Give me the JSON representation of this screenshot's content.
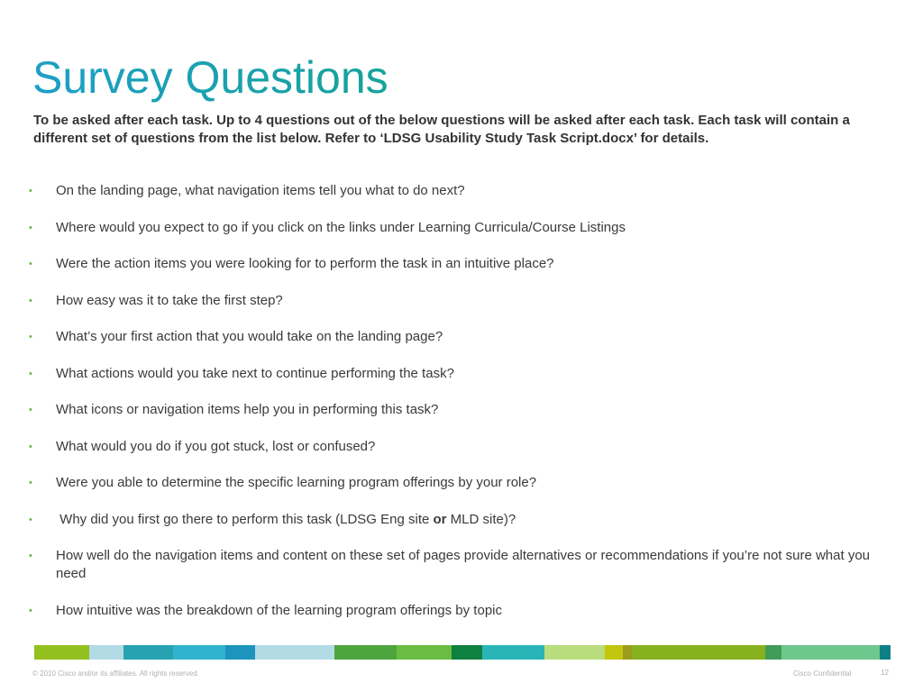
{
  "slide": {
    "title": "Survey Questions",
    "intro": "To be asked after each task.  Up to 4 questions out of the below questions will be asked after each task.  Each task will contain a different set of questions from the list below.  Refer to ‘LDSG Usability Study Task Script.docx’ for details.",
    "bullet_symbol": "•",
    "questions": [
      "On the landing page, what navigation items tell you what to do next?",
      "Where would you expect to go if you click on the links under Learning Curricula/Course Listings",
      "Were the action items you were looking for to perform the task in an intuitive place?",
      "How easy was it to take the first step?",
      "What’s your first action that you would take on the landing page?",
      "What actions would you take next to continue performing the task?",
      "What icons or navigation items help you in performing this task?",
      "What would you do if you got stuck, lost or confused?",
      "Were you able to determine the specific learning program offerings by your role?",
      {
        "prefix": " Why did you first go there to perform this task (LDSG Eng site ",
        "bold": "or",
        "suffix": " MLD site)?"
      },
      "How well do the navigation items and content on these set of pages provide alternatives or recommendations if you’re not sure what you need",
      "How intuitive was the breakdown of the learning program offerings by topic"
    ]
  },
  "colors": {
    "title_gradient_start": "#1d9fc6",
    "title_gradient_end": "#16a39a",
    "bullet": "#6cb33f",
    "color_bar": [
      "#93c01f",
      "#b2dbe6",
      "#27a2b1",
      "#30b3cd",
      "#1c94bd",
      "#b2dbe6",
      "#4ea53d",
      "#6bbc43",
      "#0e8040",
      "#29b5b8",
      "#b9dd7c",
      "#c3c60c",
      "#9b9b1d",
      "#87b11f",
      "#419c5a",
      "#6ec78d",
      "#0f7f87"
    ]
  },
  "footer": {
    "copyright": "© 2010 Cisco and/or its affiliates. All rights reserved.",
    "confidential": "Cisco Confidential",
    "page_number": "12"
  }
}
